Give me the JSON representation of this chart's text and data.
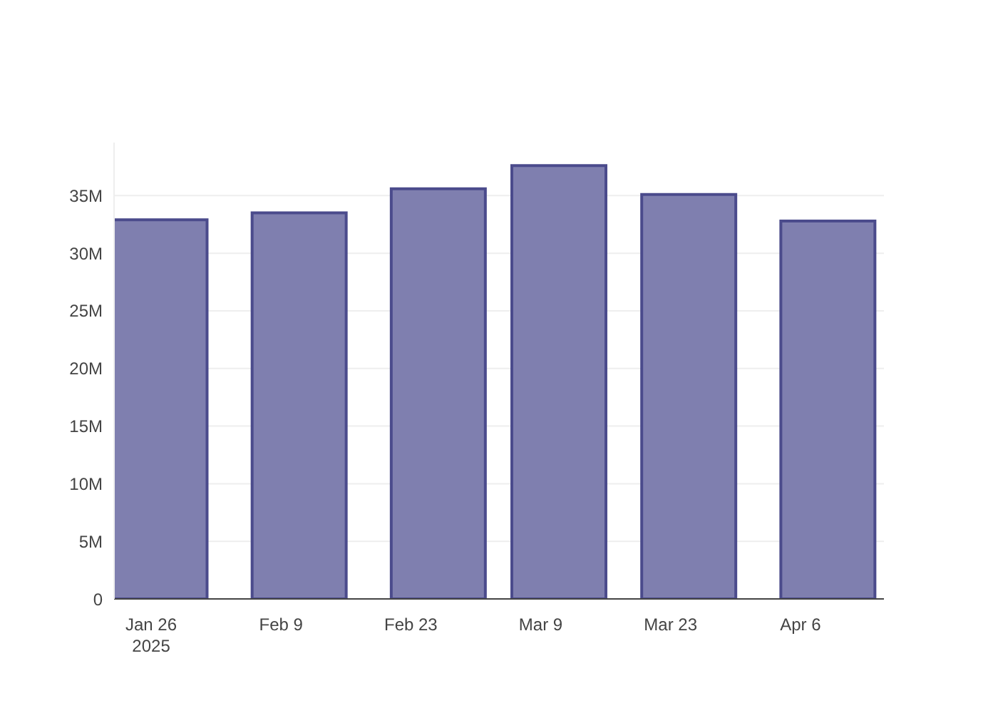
{
  "chart_data": {
    "type": "bar",
    "x": [
      "2025-01-27",
      "2025-02-11",
      "2025-02-26",
      "2025-03-11",
      "2025-03-25",
      "2025-04-09"
    ],
    "values": [
      32900000,
      33500000,
      35600000,
      37600000,
      35100000,
      32800000
    ],
    "color": "#7f7faf",
    "xlim": [
      "2025-01-22",
      "2025-04-15"
    ],
    "xticks": [
      {
        "value": "2025-01-26",
        "label": "Jan 26\n2025"
      },
      {
        "value": "2025-02-09",
        "label": "Feb 9"
      },
      {
        "value": "2025-02-23",
        "label": "Feb 23"
      },
      {
        "value": "2025-03-09",
        "label": "Mar 9"
      },
      {
        "value": "2025-03-23",
        "label": "Mar 23"
      },
      {
        "value": "2025-04-06",
        "label": "Apr 6"
      }
    ],
    "ylim": [
      0,
      39600000
    ],
    "yticks": [
      {
        "value": 0,
        "label": "0"
      },
      {
        "value": 5000000,
        "label": "5M"
      },
      {
        "value": 10000000,
        "label": "10M"
      },
      {
        "value": 15000000,
        "label": "15M"
      },
      {
        "value": 20000000,
        "label": "20M"
      },
      {
        "value": 25000000,
        "label": "25M"
      },
      {
        "value": 30000000,
        "label": "30M"
      },
      {
        "value": 35000000,
        "label": "35M"
      }
    ],
    "grid": "y"
  }
}
